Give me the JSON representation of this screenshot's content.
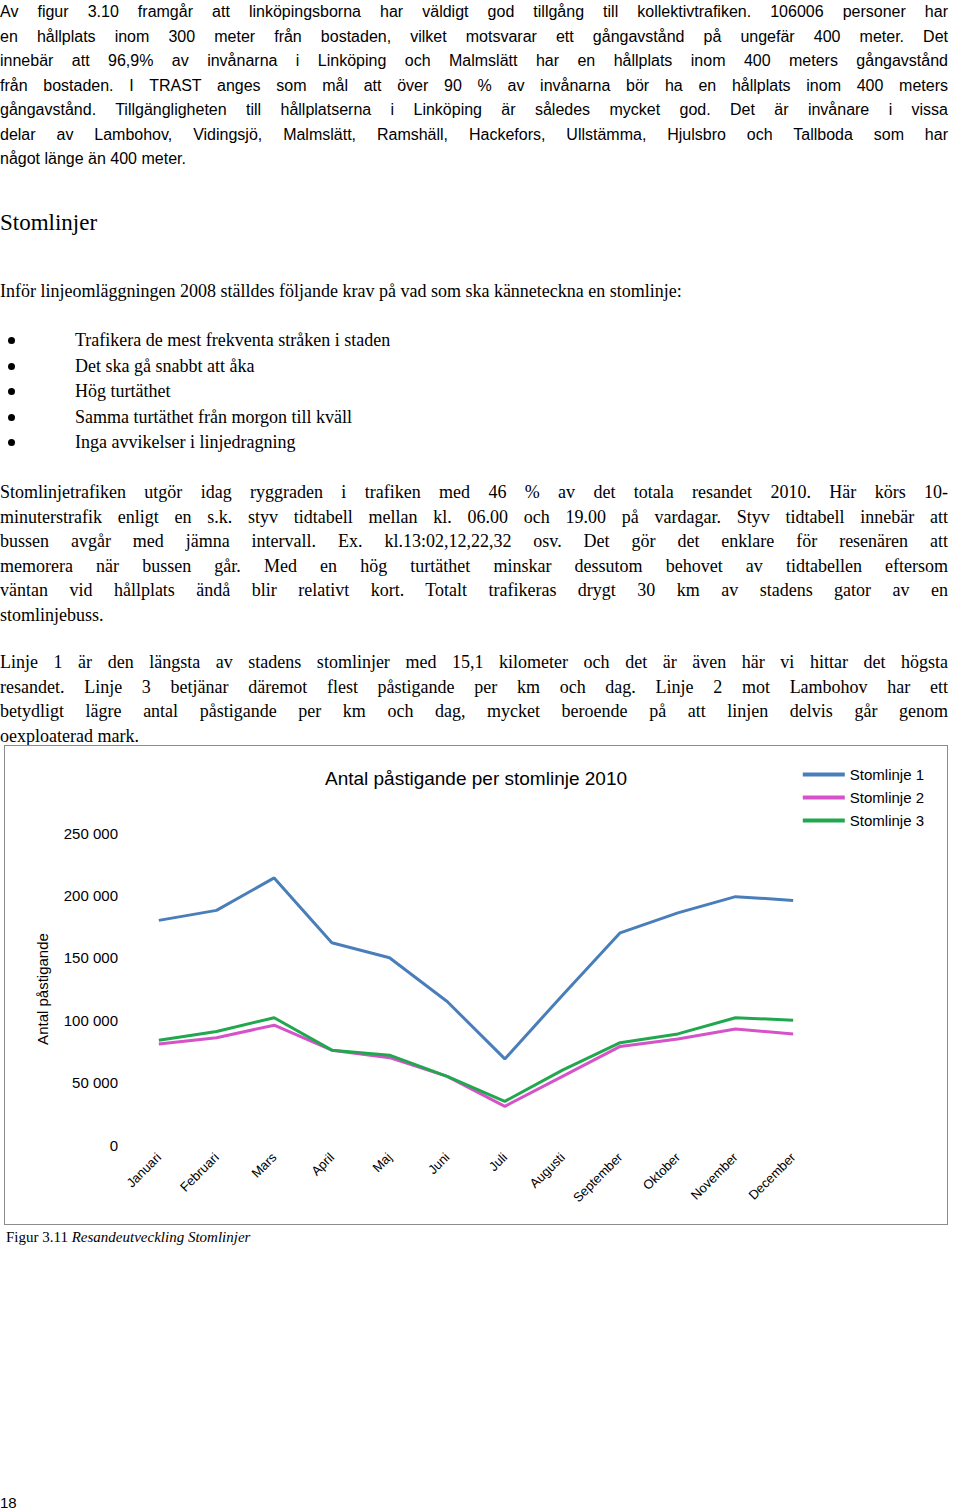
{
  "paragraph_1": [
    "Av figur 3.10 framgår att linköpingsborna har väldigt god tillgång till kollektivtrafiken. 106006 personer har",
    "en hållplats inom 300 meter från bostaden, vilket motsvarar ett gångavstånd på ungefär 400 meter. Det",
    "innebär att 96,9% av invånarna i Linköping och Malmslätt har en hållplats inom 400 meters gångavstånd",
    "från bostaden. I TRAST anges som mål att över 90 % av invånarna bör ha en hållplats inom 400 meters",
    "gångavstånd. Tillgängligheten till hållplatserna i Linköping är således mycket god. Det är invånare i vissa",
    "delar av Lambohov, Vidingsjö, Malmslätt, Ramshäll, Hackefors, Ullstämma, Hjulsbro och Tallboda som har",
    "något länge än 400 meter."
  ],
  "heading": "Stomlinjer",
  "intro": "Inför linjeomläggningen 2008 ställdes följande krav på vad som ska känneteckna en stomlinje:",
  "bullets": [
    "Trafikera de mest frekventa stråken i staden",
    "Det ska gå snabbt att åka",
    "Hög turtäthet",
    "Samma turtäthet från morgon till kväll",
    "Inga avvikelser i linjedragning"
  ],
  "paragraph_2": [
    "Stomlinjetrafiken utgör idag ryggraden i trafiken med 46 % av det totala resandet 2010. Här körs 10-",
    "minuterstrafik enligt en s.k. styv tidtabell mellan kl. 06.00 och 19.00 på vardagar. Styv tidtabell innebär att",
    "bussen avgår med jämna intervall. Ex. kl.13:02,12,22,32 osv. Det gör det enklare för resenären att",
    "memorera när bussen går. Med en hög turtäthet minskar dessutom behovet av tidtabellen eftersom",
    "väntan vid hållplats ändå blir relativt kort. Totalt trafikeras drygt 30 km av stadens gator av en",
    "stomlinjebuss."
  ],
  "paragraph_3": [
    "Linje 1 är den längsta av stadens stomlinjer med 15,1 kilometer och det är även här vi hittar det högsta",
    "resandet. Linje 3 betjänar däremot flest påstigande per km och dag. Linje 2 mot Lambohov har ett",
    "betydligt lägre antal påstigande per km och dag, mycket beroende på att linjen delvis går genom",
    "oexploaterad mark."
  ],
  "chart_data": {
    "type": "line",
    "title": "Antal påstigande per stomlinje 2010",
    "y_label": "Antal påstigande",
    "categories": [
      "Januari",
      "Februari",
      "Mars",
      "April",
      "Maj",
      "Juni",
      "Juli",
      "Augusti",
      "September",
      "Oktober",
      "November",
      "December"
    ],
    "series": [
      {
        "name": "Stomlinje 1",
        "color": "#4a7ebb",
        "values": [
          180000,
          188000,
          214000,
          162000,
          150000,
          115000,
          69000,
          120000,
          170000,
          186000,
          199000,
          196000
        ]
      },
      {
        "name": "Stomlinje 2",
        "color": "#d552c8",
        "values": [
          81000,
          86000,
          96000,
          76000,
          70000,
          55000,
          31000,
          55000,
          79000,
          85000,
          93000,
          89000
        ]
      },
      {
        "name": "Stomlinje 3",
        "color": "#21a84f",
        "values": [
          84000,
          91000,
          102000,
          76000,
          72000,
          55000,
          35000,
          60000,
          82000,
          89000,
          102000,
          100000
        ]
      }
    ],
    "ylim": [
      0,
      250000
    ],
    "yticks": [
      0,
      {
        "value": 50000,
        "label": "50 000"
      },
      {
        "value": 100000,
        "label": "100 000"
      },
      {
        "value": 150000,
        "label": "150 000"
      },
      {
        "value": 200000,
        "label": "200 000"
      },
      {
        "value": 250000,
        "label": "250 000"
      }
    ],
    "grid": false,
    "legend": "top-right"
  },
  "caption": {
    "label": "Figur 3.11",
    "text": "Resandeutveckling Stomlinjer"
  },
  "page_number": "18"
}
